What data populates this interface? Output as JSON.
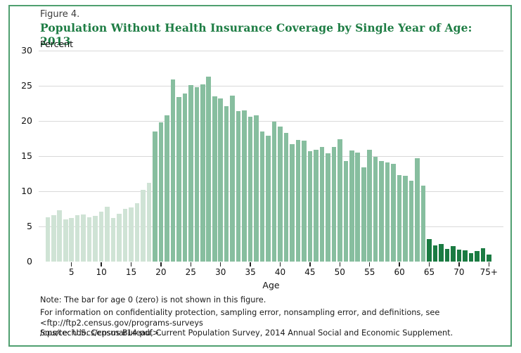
{
  "figure": {
    "label": "Figure 4.",
    "title": "Population Without Health Insurance Coverage by Single Year of Age: 2013"
  },
  "chart_data": {
    "type": "bar",
    "title": "Population Without Health Insurance Coverage by Single Year of Age: 2013",
    "xlabel": "Age",
    "ylabel": "Percent",
    "ylim": [
      0,
      30
    ],
    "yticks": [
      0,
      5,
      10,
      15,
      20,
      25,
      30
    ],
    "xtick_labels": [
      "5",
      "10",
      "15",
      "20",
      "25",
      "30",
      "35",
      "40",
      "45",
      "50",
      "55",
      "60",
      "65",
      "70",
      "75+"
    ],
    "grid": "horizontal",
    "legend": "none",
    "ages": [
      1,
      2,
      3,
      4,
      5,
      6,
      7,
      8,
      9,
      10,
      11,
      12,
      13,
      14,
      15,
      16,
      17,
      18,
      19,
      20,
      21,
      22,
      23,
      24,
      25,
      26,
      27,
      28,
      29,
      30,
      31,
      32,
      33,
      34,
      35,
      36,
      37,
      38,
      39,
      40,
      41,
      42,
      43,
      44,
      45,
      46,
      47,
      48,
      49,
      50,
      51,
      52,
      53,
      54,
      55,
      56,
      57,
      58,
      59,
      60,
      61,
      62,
      63,
      64,
      65,
      66,
      67,
      68,
      69,
      70,
      71,
      72,
      73,
      74,
      "75+"
    ],
    "values": [
      6.3,
      6.6,
      7.3,
      6.0,
      6.2,
      6.6,
      6.7,
      6.3,
      6.5,
      7.1,
      7.8,
      6.2,
      6.8,
      7.5,
      7.7,
      8.3,
      10.2,
      11.2,
      18.5,
      19.8,
      20.8,
      25.9,
      23.4,
      23.9,
      25.1,
      24.8,
      25.2,
      26.3,
      23.5,
      23.2,
      22.1,
      23.6,
      21.4,
      21.5,
      20.6,
      20.8,
      18.5,
      17.9,
      19.9,
      19.2,
      18.3,
      16.7,
      17.3,
      17.2,
      15.7,
      15.9,
      16.3,
      15.4,
      16.3,
      17.4,
      14.3,
      15.8,
      15.5,
      13.4,
      15.9,
      14.9,
      14.3,
      14.1,
      13.9,
      12.3,
      12.2,
      11.5,
      14.7,
      10.8,
      3.2,
      2.3,
      2.5,
      1.8,
      2.2,
      1.7,
      1.6,
      1.2,
      1.5,
      1.9,
      1.0
    ],
    "color_groups": [
      {
        "name": "under-19",
        "min_age": 1,
        "max_age": 18,
        "color": "#cfe3d5"
      },
      {
        "name": "19-to-64",
        "min_age": 19,
        "max_age": 64,
        "color": "#87be9f"
      },
      {
        "name": "65-and-over",
        "min_age": 65,
        "max_age": 75,
        "color": "#1b7b42"
      }
    ]
  },
  "colors": {
    "frame_border": "#4f9f70",
    "title_green": "#1e7d44",
    "gridline": "#d9d9d9"
  },
  "notes": {
    "note1": "Note: The bar for age 0 (zero) is not shown in this figure.",
    "info_lines": [
      "For information on confidentiality protection, sampling error, nonsampling error, and definitions, see <ftp://ftp2.census.gov/programs-surveys",
      "/cps/techdocs/cpsmar14.pdf>."
    ],
    "source": "Source: U.S. Census Bureau, Current Population Survey, 2014 Annual Social and Economic Supplement."
  }
}
